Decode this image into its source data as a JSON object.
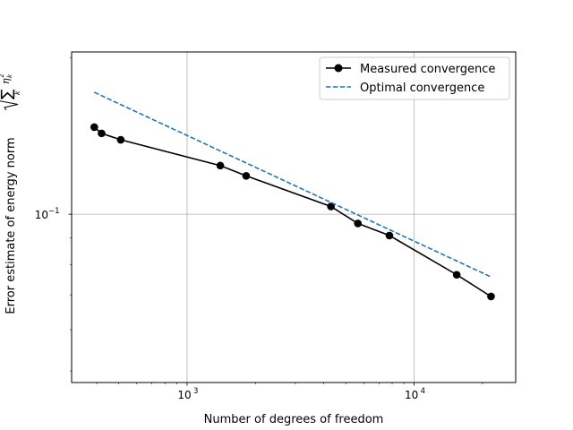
{
  "chart_data": {
    "type": "line",
    "title": "",
    "xlabel": "Number of degrees of freedom",
    "ylabel": "Error estimate of energy norm",
    "ylabel_math": {
      "sum": "∑",
      "index": "k",
      "eta": "η",
      "exp": "2"
    },
    "xscale": "log",
    "yscale": "log",
    "xlim": [
      310,
      28000
    ],
    "ylim": [
      0.0475,
      0.205
    ],
    "grid": true,
    "x_ticks": [
      {
        "base": "10",
        "exp": "3",
        "value": 1000
      },
      {
        "base": "10",
        "exp": "4",
        "value": 10000
      }
    ],
    "y_ticks": [
      {
        "base": "10",
        "exp": "−1",
        "value": 0.1
      }
    ],
    "legend_position": "top-right",
    "series": [
      {
        "name": "Measured convergence",
        "color": "#000000",
        "style": "solid",
        "marker": "circle",
        "x": [
          390,
          420,
          510,
          1400,
          1820,
          4300,
          5650,
          7780,
          15400,
          21800
        ],
        "y": [
          0.147,
          0.143,
          0.139,
          0.124,
          0.1185,
          0.1035,
          0.096,
          0.091,
          0.0765,
          0.0695
        ]
      },
      {
        "name": "Optimal convergence",
        "color": "#1f77b4",
        "style": "dashed",
        "marker": "none",
        "x": [
          390,
          21800
        ],
        "y": [
          0.1715,
          0.0758
        ]
      }
    ]
  }
}
